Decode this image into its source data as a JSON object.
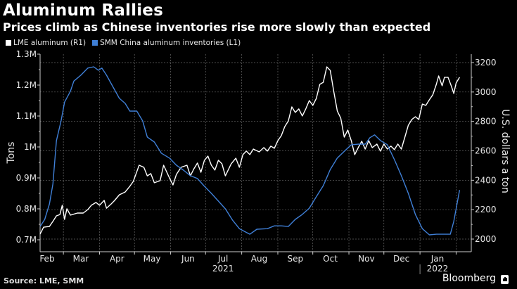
{
  "header": {
    "title": "Aluminum Rallies",
    "subtitle": "Prices climb as Chinese inventories rise more slowly than expected"
  },
  "footer": {
    "source": "Source: LME, SMM",
    "brand": "Bloomberg",
    "brand_icon": "bloomberg-logo-icon"
  },
  "chart_data": {
    "type": "line",
    "title": "Aluminum Rallies",
    "subtitle": "Prices climb as Chinese inventories rise more slowly than expected",
    "legend_position": "top-left",
    "grid": true,
    "x_unit": "days since 2021-02-01",
    "xlim": [
      8,
      378
    ],
    "x_ticks": [
      {
        "day": 28,
        "label": ""
      },
      {
        "day": 59,
        "label": ""
      },
      {
        "day": 89,
        "label": ""
      },
      {
        "day": 120,
        "label": ""
      },
      {
        "day": 150,
        "label": ""
      },
      {
        "day": 181,
        "label": ""
      },
      {
        "day": 212,
        "label": ""
      },
      {
        "day": 242,
        "label": ""
      },
      {
        "day": 273,
        "label": ""
      },
      {
        "day": 303,
        "label": ""
      },
      {
        "day": 334,
        "label": ""
      },
      {
        "day": 365,
        "label": ""
      }
    ],
    "x_month_labels": [
      {
        "day": 14,
        "label": "Feb"
      },
      {
        "day": 43,
        "label": "Mar"
      },
      {
        "day": 74,
        "label": "Apr"
      },
      {
        "day": 104,
        "label": "May"
      },
      {
        "day": 135,
        "label": "Jun"
      },
      {
        "day": 165,
        "label": "Jul"
      },
      {
        "day": 196,
        "label": "Aug"
      },
      {
        "day": 227,
        "label": "Sep"
      },
      {
        "day": 257,
        "label": "Oct"
      },
      {
        "day": 288,
        "label": "Nov"
      },
      {
        "day": 318,
        "label": "Dec"
      },
      {
        "day": 349,
        "label": "Jan"
      }
    ],
    "x_year_labels": [
      {
        "day": 165,
        "label": "2021"
      },
      {
        "day": 349,
        "label": "2022"
      }
    ],
    "year_divider_day": 334,
    "y_left": {
      "label": "Tons",
      "lim": [
        0.69,
        1.3
      ],
      "ticks": [
        0.7,
        0.8,
        0.9,
        1.0,
        1.1,
        1.2,
        1.3
      ],
      "tick_labels": [
        "0.7M",
        "0.8M",
        "0.9M",
        "1M",
        "1.1M",
        "1.2M",
        "1.3M"
      ],
      "unit": "million tons"
    },
    "y_right": {
      "label": "U.S. dollars a ton",
      "lim": [
        1990,
        3260
      ],
      "ticks": [
        2000,
        2200,
        2400,
        2600,
        2800,
        3000,
        3200
      ],
      "tick_labels": [
        "2000",
        "2200",
        "2400",
        "2600",
        "2800",
        "3000",
        "3200"
      ]
    },
    "series": [
      {
        "name": "LME aluminum (R1)",
        "axis": "right",
        "color": "#ffffff",
        "x": [
          8,
          11,
          16,
          19,
          22,
          25,
          27,
          29,
          31,
          34,
          40,
          45,
          49,
          52,
          56,
          59,
          63,
          65,
          69,
          72,
          76,
          81,
          85,
          88,
          93,
          97,
          100,
          103,
          106,
          111,
          114,
          119,
          122,
          125,
          129,
          134,
          137,
          140,
          143,
          146,
          149,
          152,
          155,
          158,
          161,
          164,
          167,
          172,
          176,
          179,
          182,
          185,
          188,
          191,
          196,
          200,
          203,
          206,
          209,
          212,
          215,
          218,
          221,
          224,
          227,
          230,
          233,
          236,
          239,
          242,
          245,
          248,
          251,
          254,
          257,
          260,
          263,
          266,
          269,
          272,
          275,
          278,
          281,
          284,
          287,
          290,
          293,
          297,
          300,
          303,
          306,
          309,
          312,
          315,
          318,
          321,
          324,
          327,
          330,
          333,
          336,
          339,
          342,
          345,
          348,
          350,
          353,
          355,
          358,
          361,
          363,
          365,
          368
        ],
        "values": [
          2034,
          2081,
          2086,
          2120,
          2158,
          2167,
          2230,
          2134,
          2206,
          2163,
          2177,
          2177,
          2201,
          2230,
          2249,
          2230,
          2263,
          2210,
          2239,
          2263,
          2301,
          2320,
          2359,
          2392,
          2502,
          2488,
          2430,
          2445,
          2383,
          2397,
          2502,
          2416,
          2368,
          2440,
          2488,
          2502,
          2430,
          2478,
          2517,
          2454,
          2536,
          2564,
          2502,
          2469,
          2536,
          2512,
          2430,
          2512,
          2550,
          2488,
          2574,
          2598,
          2574,
          2612,
          2593,
          2622,
          2598,
          2632,
          2617,
          2669,
          2703,
          2765,
          2803,
          2899,
          2861,
          2885,
          2837,
          2885,
          2942,
          2909,
          2956,
          3052,
          3066,
          3171,
          3147,
          3004,
          2871,
          2823,
          2693,
          2741,
          2669,
          2574,
          2622,
          2665,
          2612,
          2669,
          2622,
          2646,
          2598,
          2646,
          2612,
          2632,
          2608,
          2646,
          2612,
          2693,
          2774,
          2813,
          2832,
          2813,
          2918,
          2909,
          2947,
          2981,
          3052,
          3109,
          3042,
          3100,
          3100,
          3038,
          2990,
          3062,
          3100
        ]
      },
      {
        "name": "SMM China aluminum inventories (L1)",
        "axis": "left",
        "color": "#3f7fd6",
        "x": [
          8,
          12,
          16,
          19,
          22,
          26,
          29,
          34,
          37,
          43,
          49,
          54,
          58,
          61,
          65,
          70,
          76,
          81,
          85,
          91,
          96,
          100,
          106,
          112,
          119,
          125,
          131,
          137,
          143,
          149,
          155,
          161,
          167,
          173,
          179,
          188,
          194,
          203,
          209,
          215,
          221,
          227,
          233,
          239,
          245,
          251,
          257,
          263,
          269,
          275,
          281,
          287,
          291,
          295,
          300,
          306,
          312,
          318,
          324,
          330,
          336,
          342,
          348,
          360,
          363,
          368
        ],
        "values": [
          0.743,
          0.766,
          0.816,
          0.88,
          1.02,
          1.084,
          1.145,
          1.18,
          1.213,
          1.232,
          1.255,
          1.259,
          1.248,
          1.255,
          1.232,
          1.198,
          1.157,
          1.141,
          1.116,
          1.116,
          1.084,
          1.032,
          1.016,
          0.98,
          0.964,
          0.941,
          0.925,
          0.907,
          0.898,
          0.873,
          0.85,
          0.825,
          0.8,
          0.764,
          0.736,
          0.718,
          0.734,
          0.736,
          0.745,
          0.745,
          0.743,
          0.766,
          0.782,
          0.802,
          0.839,
          0.875,
          0.927,
          0.964,
          0.986,
          1.007,
          1.009,
          1.009,
          1.03,
          1.039,
          1.021,
          1.007,
          0.959,
          0.907,
          0.85,
          0.782,
          0.736,
          0.716,
          0.718,
          0.718,
          0.759,
          0.861
        ]
      }
    ]
  }
}
